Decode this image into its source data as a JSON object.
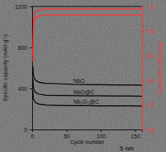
{
  "chart_data": {
    "type": "line",
    "x_label": "Cycle number",
    "y_label": "Specific capacity (mAh g⁻¹)",
    "y2_label": "Coulombic efficiency",
    "x": [
      1,
      2,
      5,
      10,
      20,
      40,
      60,
      80,
      100,
      120,
      140,
      160
    ],
    "series": [
      {
        "name": "NbO",
        "color": "#000000",
        "values": [
          620,
          520,
          480,
          460,
          450,
          445,
          440,
          438,
          436,
          435,
          434,
          433
        ]
      },
      {
        "name": "NbO@C",
        "color": "#000000",
        "values": [
          500,
          400,
          360,
          345,
          335,
          332,
          330,
          329,
          328,
          327,
          326,
          325
        ]
      },
      {
        "name": "Nb₂O₅@C",
        "color": "#000000",
        "values": [
          380,
          300,
          262,
          248,
          238,
          235,
          233,
          232,
          231,
          230,
          230,
          229
        ]
      },
      {
        "color": "#ff3030",
        "axis": "y2",
        "values": [
          0.6,
          0.9,
          0.96,
          0.97,
          0.98,
          0.98,
          0.98,
          0.98,
          0.98,
          0.98,
          0.98,
          0.98
        ]
      },
      {
        "color": "#ff3030",
        "axis": "y2",
        "values": [
          0.55,
          0.85,
          0.91,
          0.92,
          0.93,
          0.93,
          0.93,
          0.93,
          0.93,
          0.93,
          0.93,
          0.93
        ]
      }
    ],
    "xlim": [
      0,
      160
    ],
    "xticks": [
      0,
      50,
      100,
      150
    ],
    "ylim": [
      0,
      1200
    ],
    "yticks": [
      0,
      400,
      800,
      1200
    ],
    "y2lim": [
      0,
      1
    ],
    "y2ticks": [
      {
        "value": 0,
        "label": "0.0"
      },
      0.2,
      0.4,
      0.6,
      0.8,
      {
        "value": 1,
        "label": "1.0"
      }
    ],
    "annotations": [
      {
        "text": "5 nm"
      }
    ]
  }
}
